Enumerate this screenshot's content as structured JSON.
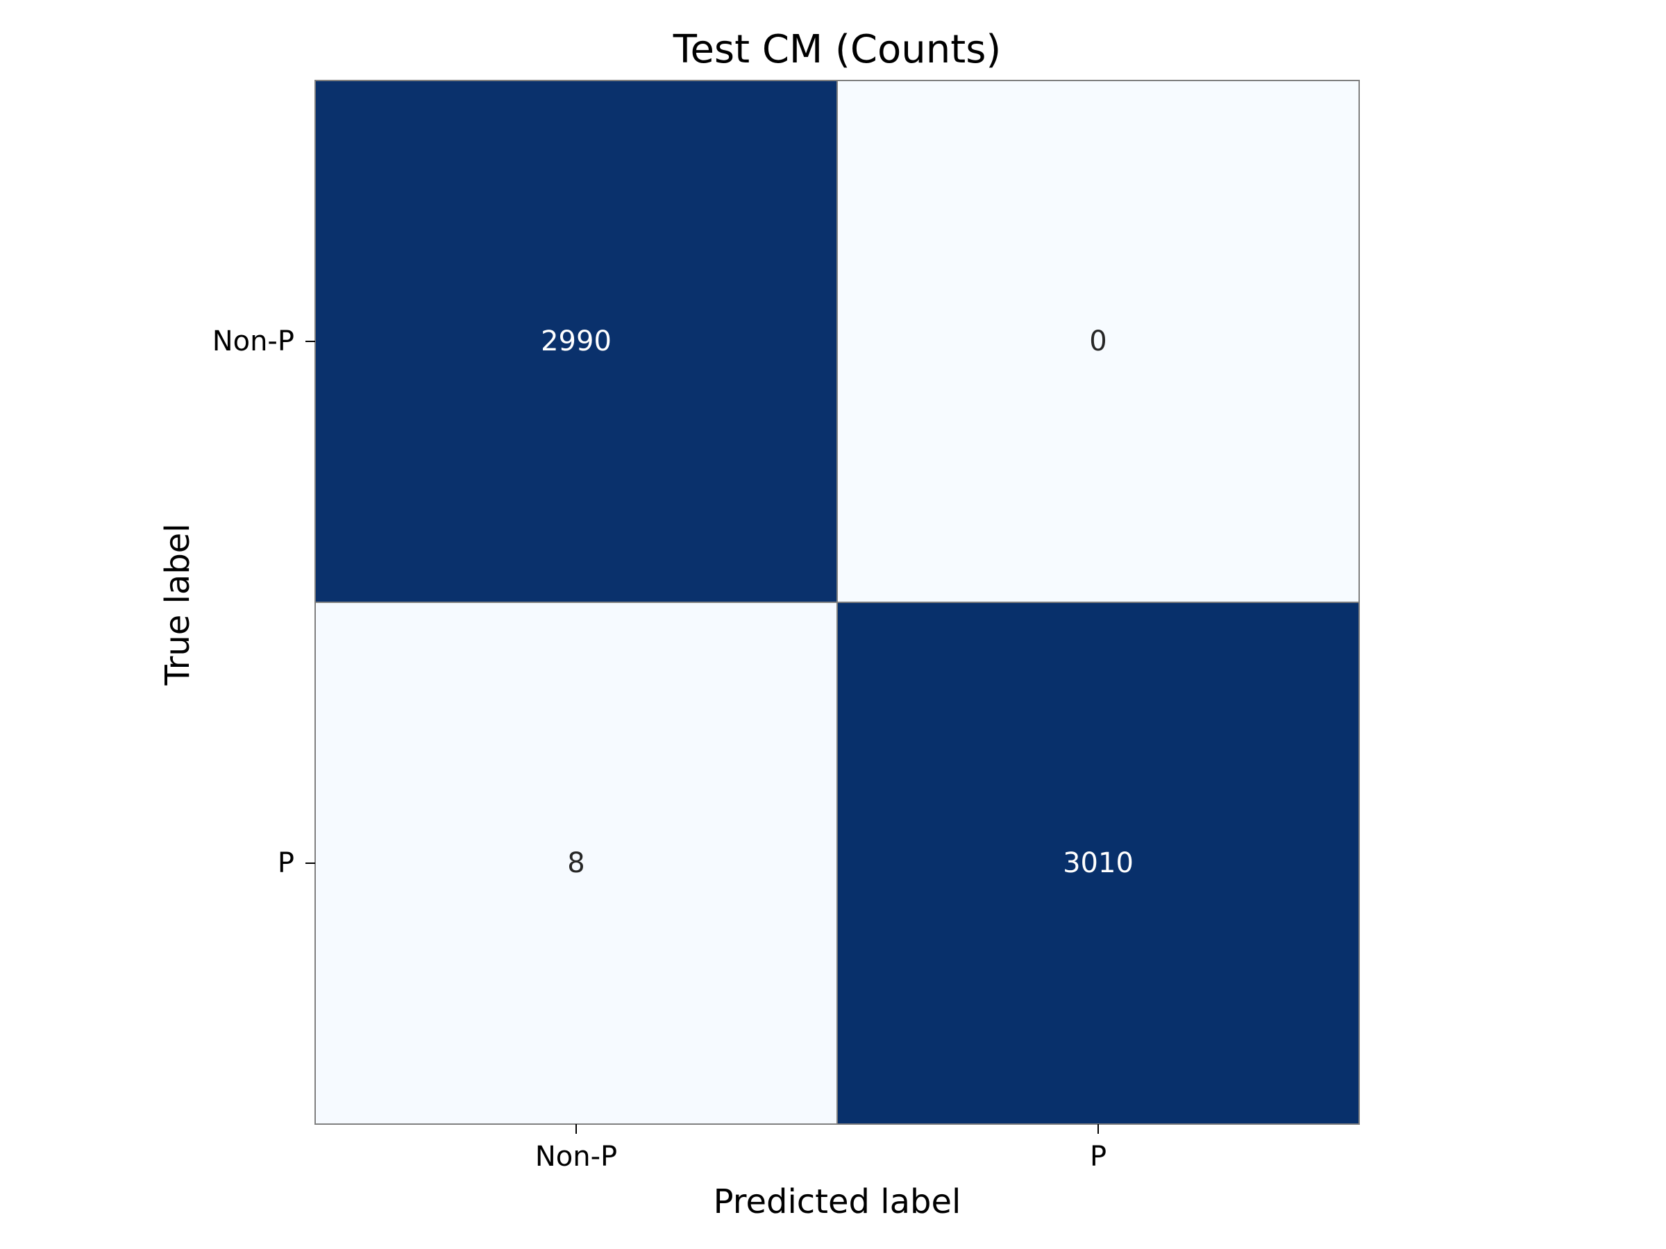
{
  "chart_data": {
    "type": "heatmap",
    "title": "Test CM (Counts)",
    "xlabel": "Predicted label",
    "ylabel": "True label",
    "x_categories": [
      "Non-P",
      "P"
    ],
    "y_categories": [
      "Non-P",
      "P"
    ],
    "values": [
      [
        2990,
        0
      ],
      [
        8,
        3010
      ]
    ],
    "colormap": "Blues",
    "colors": {
      "low": "#f7fbff",
      "high": "#08306b",
      "cell_border": "#7f7f7f",
      "text_on_dark": "#ffffff",
      "text_on_light": "#262626"
    },
    "colorbar": false,
    "grid": false
  }
}
